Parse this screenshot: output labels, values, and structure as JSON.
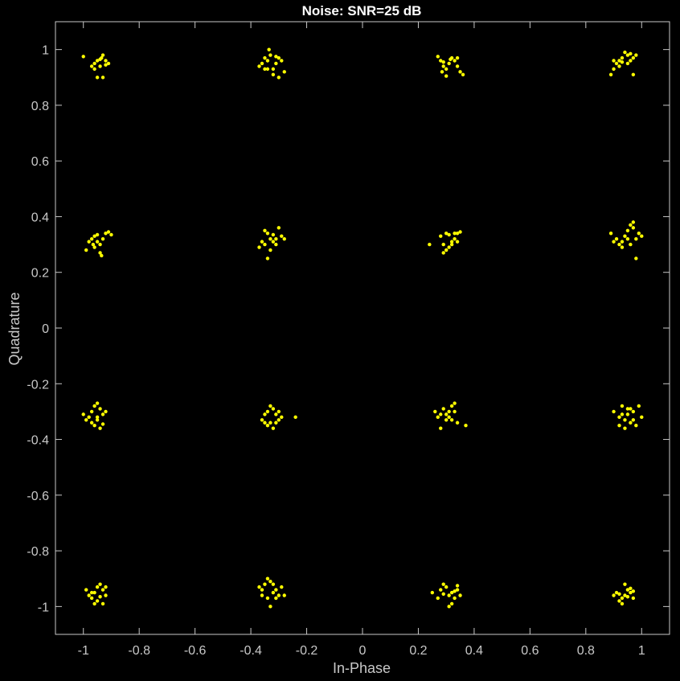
{
  "chart_data": {
    "type": "scatter",
    "title": "Noise: SNR=25 dB",
    "xlabel": "In-Phase",
    "ylabel": "Quadrature",
    "xlim": [
      -1.1,
      1.1
    ],
    "ylim": [
      -1.1,
      1.1
    ],
    "xticks": [
      -1,
      -0.8,
      -0.6,
      -0.4,
      -0.2,
      0,
      0.2,
      0.4,
      0.6,
      0.8,
      1
    ],
    "xtick_labels": [
      "-1",
      "-0.8",
      "-0.6",
      "-0.4",
      "-0.2",
      "0",
      "0.2",
      "0.4",
      "0.6",
      "0.8",
      "1"
    ],
    "yticks": [
      1,
      0.8,
      0.6,
      0.4,
      0.2,
      0,
      -0.2,
      -0.4,
      -0.6,
      -0.8,
      -1
    ],
    "ytick_labels": [
      "1",
      "0.8",
      "0.6",
      "0.4",
      "0.2",
      "0",
      "-0.2",
      "-0.4",
      "-0.6",
      "-0.8",
      "-1"
    ],
    "grid": false,
    "background_color": "#000000",
    "axis_color": "#c8c8c8",
    "series": [
      {
        "marker_color": "#ffff00",
        "points": [
          [
            -1.0,
            0.975
          ],
          [
            -0.97,
            0.94
          ],
          [
            -0.96,
            0.95
          ],
          [
            -0.95,
            0.96
          ],
          [
            -0.94,
            0.965
          ],
          [
            -0.93,
            0.98
          ],
          [
            -0.92,
            0.96
          ],
          [
            -0.91,
            0.95
          ],
          [
            -0.95,
            0.9
          ],
          [
            -0.93,
            0.9
          ],
          [
            -0.96,
            0.93
          ],
          [
            -0.94,
            0.94
          ],
          [
            -0.92,
            0.945
          ],
          [
            -0.935,
            0.97
          ],
          [
            -0.37,
            0.94
          ],
          [
            -0.36,
            0.95
          ],
          [
            -0.35,
            0.93
          ],
          [
            -0.34,
            0.96
          ],
          [
            -0.335,
            1.0
          ],
          [
            -0.33,
            0.98
          ],
          [
            -0.32,
            0.93
          ],
          [
            -0.31,
            0.95
          ],
          [
            -0.3,
            0.97
          ],
          [
            -0.29,
            0.96
          ],
          [
            -0.28,
            0.92
          ],
          [
            -0.32,
            0.91
          ],
          [
            -0.35,
            0.97
          ],
          [
            -0.3,
            0.9
          ],
          [
            -0.34,
            0.93
          ],
          [
            -0.31,
            0.975
          ],
          [
            0.27,
            0.975
          ],
          [
            0.28,
            0.96
          ],
          [
            0.29,
            0.94
          ],
          [
            0.3,
            0.93
          ],
          [
            0.31,
            0.95
          ],
          [
            0.32,
            0.97
          ],
          [
            0.33,
            0.96
          ],
          [
            0.34,
            0.94
          ],
          [
            0.35,
            0.92
          ],
          [
            0.36,
            0.91
          ],
          [
            0.285,
            0.92
          ],
          [
            0.3,
            0.905
          ],
          [
            0.315,
            0.965
          ],
          [
            0.34,
            0.97
          ],
          [
            0.29,
            0.955
          ],
          [
            0.89,
            0.91
          ],
          [
            0.9,
            0.93
          ],
          [
            0.91,
            0.95
          ],
          [
            0.92,
            0.96
          ],
          [
            0.93,
            0.97
          ],
          [
            0.94,
            0.99
          ],
          [
            0.95,
            0.98
          ],
          [
            0.96,
            0.96
          ],
          [
            0.97,
            0.97
          ],
          [
            0.98,
            0.98
          ],
          [
            0.97,
            0.91
          ],
          [
            0.92,
            0.94
          ],
          [
            0.95,
            0.95
          ],
          [
            0.93,
            0.955
          ],
          [
            0.96,
            0.985
          ],
          [
            0.9,
            0.96
          ],
          [
            -0.99,
            0.28
          ],
          [
            -0.98,
            0.31
          ],
          [
            -0.97,
            0.32
          ],
          [
            -0.96,
            0.33
          ],
          [
            -0.95,
            0.31
          ],
          [
            -0.94,
            0.3
          ],
          [
            -0.93,
            0.32
          ],
          [
            -0.92,
            0.34
          ],
          [
            -0.91,
            0.345
          ],
          [
            -0.9,
            0.335
          ],
          [
            -0.94,
            0.27
          ],
          [
            -0.935,
            0.26
          ],
          [
            -0.96,
            0.29
          ],
          [
            -0.95,
            0.335
          ],
          [
            -0.965,
            0.3
          ],
          [
            -0.37,
            0.29
          ],
          [
            -0.36,
            0.31
          ],
          [
            -0.35,
            0.35
          ],
          [
            -0.34,
            0.34
          ],
          [
            -0.33,
            0.32
          ],
          [
            -0.32,
            0.31
          ],
          [
            -0.31,
            0.32
          ],
          [
            -0.3,
            0.36
          ],
          [
            -0.29,
            0.33
          ],
          [
            -0.28,
            0.32
          ],
          [
            -0.34,
            0.25
          ],
          [
            -0.33,
            0.28
          ],
          [
            -0.35,
            0.3
          ],
          [
            -0.32,
            0.335
          ],
          [
            -0.31,
            0.3
          ],
          [
            0.24,
            0.3
          ],
          [
            0.28,
            0.33
          ],
          [
            0.29,
            0.3
          ],
          [
            0.3,
            0.28
          ],
          [
            0.31,
            0.29
          ],
          [
            0.32,
            0.31
          ],
          [
            0.33,
            0.32
          ],
          [
            0.34,
            0.34
          ],
          [
            0.35,
            0.345
          ],
          [
            0.3,
            0.34
          ],
          [
            0.32,
            0.3
          ],
          [
            0.34,
            0.31
          ],
          [
            0.29,
            0.27
          ],
          [
            0.33,
            0.34
          ],
          [
            0.31,
            0.335
          ],
          [
            0.89,
            0.34
          ],
          [
            0.91,
            0.32
          ],
          [
            0.92,
            0.3
          ],
          [
            0.93,
            0.31
          ],
          [
            0.94,
            0.33
          ],
          [
            0.95,
            0.35
          ],
          [
            0.96,
            0.37
          ],
          [
            0.97,
            0.36
          ],
          [
            0.98,
            0.32
          ],
          [
            0.99,
            0.34
          ],
          [
            1.0,
            0.33
          ],
          [
            0.98,
            0.25
          ],
          [
            0.93,
            0.29
          ],
          [
            0.96,
            0.3
          ],
          [
            0.95,
            0.32
          ],
          [
            0.97,
            0.38
          ],
          [
            0.9,
            0.31
          ],
          [
            -1.0,
            -0.31
          ],
          [
            -0.99,
            -0.33
          ],
          [
            -0.98,
            -0.32
          ],
          [
            -0.97,
            -0.3
          ],
          [
            -0.96,
            -0.28
          ],
          [
            -0.95,
            -0.27
          ],
          [
            -0.94,
            -0.29
          ],
          [
            -0.93,
            -0.31
          ],
          [
            -0.95,
            -0.33
          ],
          [
            -0.96,
            -0.35
          ],
          [
            -0.94,
            -0.36
          ],
          [
            -0.92,
            -0.3
          ],
          [
            -0.97,
            -0.34
          ],
          [
            -0.95,
            -0.32
          ],
          [
            -0.93,
            -0.345
          ],
          [
            -0.36,
            -0.33
          ],
          [
            -0.35,
            -0.31
          ],
          [
            -0.34,
            -0.3
          ],
          [
            -0.33,
            -0.28
          ],
          [
            -0.32,
            -0.29
          ],
          [
            -0.31,
            -0.31
          ],
          [
            -0.3,
            -0.33
          ],
          [
            -0.29,
            -0.32
          ],
          [
            -0.24,
            -0.32
          ],
          [
            -0.34,
            -0.35
          ],
          [
            -0.33,
            -0.34
          ],
          [
            -0.32,
            -0.36
          ],
          [
            -0.35,
            -0.34
          ],
          [
            -0.31,
            -0.34
          ],
          [
            -0.3,
            -0.3
          ],
          [
            0.26,
            -0.3
          ],
          [
            0.27,
            -0.32
          ],
          [
            0.28,
            -0.36
          ],
          [
            0.3,
            -0.33
          ],
          [
            0.31,
            -0.3
          ],
          [
            0.32,
            -0.28
          ],
          [
            0.33,
            -0.27
          ],
          [
            0.34,
            -0.34
          ],
          [
            0.37,
            -0.35
          ],
          [
            0.29,
            -0.29
          ],
          [
            0.31,
            -0.32
          ],
          [
            0.3,
            -0.31
          ],
          [
            0.32,
            -0.33
          ],
          [
            0.33,
            -0.3
          ],
          [
            0.28,
            -0.31
          ],
          [
            0.9,
            -0.3
          ],
          [
            0.92,
            -0.32
          ],
          [
            0.93,
            -0.28
          ],
          [
            0.94,
            -0.33
          ],
          [
            0.95,
            -0.31
          ],
          [
            0.96,
            -0.29
          ],
          [
            0.97,
            -0.3
          ],
          [
            0.98,
            -0.35
          ],
          [
            1.0,
            -0.32
          ],
          [
            0.94,
            -0.36
          ],
          [
            0.96,
            -0.34
          ],
          [
            0.92,
            -0.35
          ],
          [
            0.99,
            -0.28
          ],
          [
            0.95,
            -0.29
          ],
          [
            0.97,
            -0.33
          ],
          [
            0.93,
            -0.31
          ],
          [
            -0.99,
            -0.94
          ],
          [
            -0.98,
            -0.96
          ],
          [
            -0.97,
            -0.97
          ],
          [
            -0.96,
            -0.95
          ],
          [
            -0.95,
            -0.93
          ],
          [
            -0.94,
            -0.92
          ],
          [
            -0.93,
            -0.94
          ],
          [
            -0.92,
            -0.96
          ],
          [
            -0.93,
            -0.99
          ],
          [
            -0.95,
            -0.98
          ],
          [
            -0.96,
            -0.99
          ],
          [
            -0.97,
            -0.95
          ],
          [
            -0.94,
            -0.965
          ],
          [
            -0.92,
            -0.93
          ],
          [
            -0.37,
            -0.93
          ],
          [
            -0.36,
            -0.96
          ],
          [
            -0.35,
            -0.92
          ],
          [
            -0.34,
            -0.9
          ],
          [
            -0.33,
            -0.91
          ],
          [
            -0.32,
            -0.95
          ],
          [
            -0.31,
            -0.94
          ],
          [
            -0.3,
            -0.96
          ],
          [
            -0.29,
            -0.93
          ],
          [
            -0.28,
            -0.96
          ],
          [
            -0.33,
            -1.0
          ],
          [
            -0.34,
            -0.97
          ],
          [
            -0.32,
            -0.92
          ],
          [
            -0.36,
            -0.94
          ],
          [
            -0.31,
            -0.97
          ],
          [
            0.25,
            -0.95
          ],
          [
            0.27,
            -0.97
          ],
          [
            0.28,
            -0.94
          ],
          [
            0.29,
            -0.92
          ],
          [
            0.3,
            -0.93
          ],
          [
            0.31,
            -0.96
          ],
          [
            0.32,
            -0.95
          ],
          [
            0.33,
            -0.97
          ],
          [
            0.34,
            -0.94
          ],
          [
            0.35,
            -0.96
          ],
          [
            0.31,
            -1.0
          ],
          [
            0.32,
            -0.99
          ],
          [
            0.29,
            -0.955
          ],
          [
            0.34,
            -0.925
          ],
          [
            0.33,
            -0.945
          ],
          [
            0.9,
            -0.96
          ],
          [
            0.91,
            -0.95
          ],
          [
            0.92,
            -0.98
          ],
          [
            0.93,
            -0.99
          ],
          [
            0.94,
            -0.96
          ],
          [
            0.95,
            -0.94
          ],
          [
            0.96,
            -0.95
          ],
          [
            0.97,
            -0.97
          ],
          [
            0.94,
            -0.92
          ],
          [
            0.95,
            -0.965
          ],
          [
            0.96,
            -0.935
          ],
          [
            0.93,
            -0.97
          ],
          [
            0.92,
            -0.955
          ],
          [
            0.97,
            -0.945
          ]
        ]
      }
    ]
  }
}
